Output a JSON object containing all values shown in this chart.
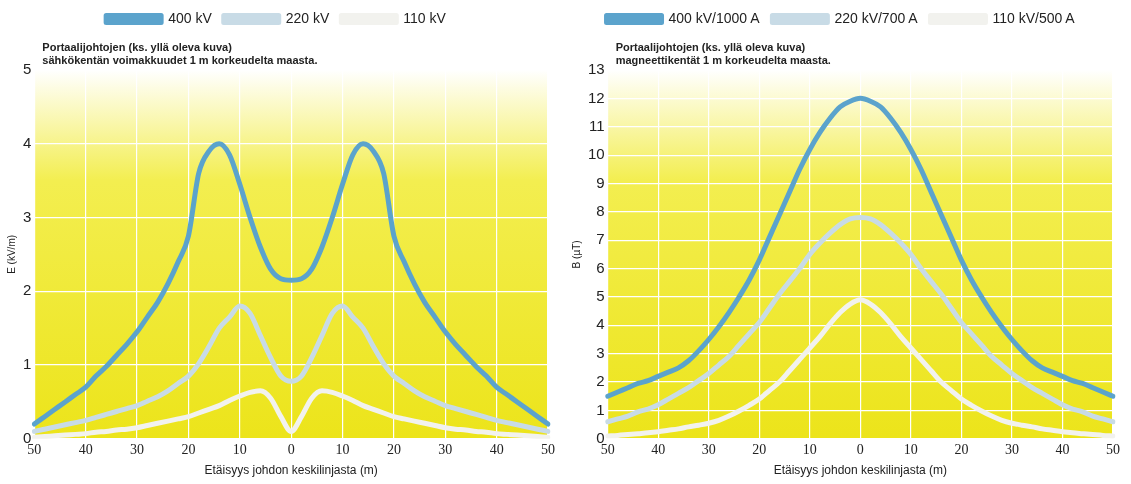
{
  "chart_data": [
    {
      "type": "line",
      "xlabel": "Etäisyys johdon keskilinjasta (m)",
      "ylabel": "E (kV/m)",
      "annotations": [
        "Portaalijohtojen (ks. yllä oleva kuva)",
        "sähkökentän voimakkuudet 1 m korkeudelta maasta."
      ],
      "categories": [
        "50",
        null,
        null,
        null,
        null,
        "40",
        null,
        null,
        null,
        null,
        "30",
        null,
        null,
        null,
        null,
        "20",
        null,
        null,
        null,
        null,
        "10",
        null,
        null,
        null,
        null,
        "0",
        null,
        null,
        null,
        null,
        "10",
        null,
        null,
        null,
        null,
        "20",
        null,
        null,
        null,
        null,
        "30",
        null,
        null,
        null,
        null,
        "40",
        null,
        null,
        null,
        null,
        "50"
      ],
      "ylim": [
        0,
        5
      ],
      "yticks": [
        0,
        1,
        2,
        3,
        4,
        5
      ],
      "grid": true,
      "legend": "top",
      "series": [
        {
          "name": "400 kV",
          "color": "#5ba3cc",
          "values": [
            0.2,
            0.3,
            0.4,
            0.5,
            0.6,
            0.7,
            0.85,
            0.98,
            1.13,
            1.28,
            1.45,
            1.65,
            1.85,
            2.1,
            2.4,
            2.75,
            3.6,
            3.9,
            4.0,
            3.85,
            3.45,
            3.0,
            2.6,
            2.3,
            2.17,
            2.15,
            2.17,
            2.3,
            2.6,
            3.0,
            3.45,
            3.85,
            4.0,
            3.9,
            3.6,
            2.75,
            2.4,
            2.1,
            1.85,
            1.65,
            1.45,
            1.28,
            1.13,
            0.98,
            0.85,
            0.7,
            0.6,
            0.5,
            0.4,
            0.3,
            0.2
          ]
        },
        {
          "name": "220 kV",
          "color": "#c8dbe6",
          "values": [
            0.1,
            0.13,
            0.16,
            0.19,
            0.22,
            0.25,
            0.29,
            0.33,
            0.37,
            0.41,
            0.45,
            0.51,
            0.57,
            0.65,
            0.75,
            0.85,
            1.02,
            1.25,
            1.5,
            1.65,
            1.8,
            1.7,
            1.4,
            1.1,
            0.85,
            0.78,
            0.85,
            1.1,
            1.4,
            1.7,
            1.8,
            1.65,
            1.5,
            1.25,
            1.02,
            0.85,
            0.75,
            0.65,
            0.57,
            0.51,
            0.45,
            0.41,
            0.37,
            0.33,
            0.29,
            0.25,
            0.22,
            0.19,
            0.16,
            0.13,
            0.1
          ]
        },
        {
          "name": "110 kV",
          "color": "#f2f2ee",
          "values": [
            0.02,
            0.03,
            0.04,
            0.05,
            0.06,
            0.07,
            0.09,
            0.1,
            0.12,
            0.13,
            0.15,
            0.18,
            0.21,
            0.24,
            0.27,
            0.3,
            0.35,
            0.4,
            0.45,
            0.52,
            0.58,
            0.63,
            0.65,
            0.55,
            0.3,
            0.1,
            0.3,
            0.55,
            0.65,
            0.63,
            0.58,
            0.52,
            0.45,
            0.4,
            0.35,
            0.3,
            0.27,
            0.24,
            0.21,
            0.18,
            0.15,
            0.13,
            0.12,
            0.1,
            0.09,
            0.07,
            0.06,
            0.05,
            0.04,
            0.03,
            0.02
          ]
        }
      ]
    },
    {
      "type": "line",
      "xlabel": "Etäisyys johdon keskilinjasta (m)",
      "ylabel": "B (µT)",
      "annotations": [
        "Portaalijohtojen (ks. yllä oleva kuva)",
        "magneettikentät 1 m korkeudelta maasta."
      ],
      "categories": [
        "50",
        null,
        null,
        null,
        null,
        "40",
        null,
        null,
        null,
        null,
        "30",
        null,
        null,
        null,
        null,
        "20",
        null,
        null,
        null,
        null,
        "10",
        null,
        null,
        null,
        null,
        "0",
        null,
        null,
        null,
        null,
        "10",
        null,
        null,
        null,
        null,
        "20",
        null,
        null,
        null,
        null,
        "30",
        null,
        null,
        null,
        null,
        "40",
        null,
        null,
        null,
        null,
        "50"
      ],
      "ylim": [
        0,
        13
      ],
      "yticks": [
        0,
        1,
        2,
        3,
        4,
        5,
        6,
        7,
        8,
        9,
        10,
        11,
        12,
        13
      ],
      "grid": true,
      "legend": "top",
      "series": [
        {
          "name": "400 kV/1000 A",
          "color": "#5ba3cc",
          "values": [
            1.5,
            1.65,
            1.8,
            1.95,
            2.05,
            2.2,
            2.35,
            2.5,
            2.75,
            3.1,
            3.5,
            3.95,
            4.45,
            5.0,
            5.6,
            6.3,
            7.1,
            7.9,
            8.7,
            9.5,
            10.2,
            10.8,
            11.3,
            11.7,
            11.9,
            12.0,
            11.9,
            11.7,
            11.3,
            10.8,
            10.2,
            9.5,
            8.7,
            7.9,
            7.1,
            6.3,
            5.6,
            5.0,
            4.45,
            3.95,
            3.5,
            3.1,
            2.75,
            2.5,
            2.35,
            2.2,
            2.05,
            1.95,
            1.8,
            1.65,
            1.5
          ]
        },
        {
          "name": "220 kV/700 A",
          "color": "#c8dbe6",
          "values": [
            0.6,
            0.7,
            0.8,
            0.95,
            1.05,
            1.2,
            1.4,
            1.6,
            1.8,
            2.05,
            2.3,
            2.6,
            2.9,
            3.3,
            3.7,
            4.1,
            4.6,
            5.1,
            5.55,
            6.0,
            6.5,
            6.9,
            7.25,
            7.55,
            7.75,
            7.8,
            7.75,
            7.55,
            7.25,
            6.9,
            6.5,
            6.0,
            5.55,
            5.1,
            4.6,
            4.1,
            3.7,
            3.3,
            2.9,
            2.6,
            2.3,
            2.05,
            1.8,
            1.6,
            1.4,
            1.2,
            1.05,
            0.95,
            0.8,
            0.7,
            0.6
          ]
        },
        {
          "name": "110 kV/500 A",
          "color": "#f2f2ee",
          "values": [
            0.1,
            0.12,
            0.15,
            0.18,
            0.21,
            0.25,
            0.3,
            0.35,
            0.42,
            0.48,
            0.55,
            0.65,
            0.8,
            0.98,
            1.18,
            1.4,
            1.7,
            2.0,
            2.4,
            2.8,
            3.2,
            3.6,
            4.05,
            4.45,
            4.75,
            4.9,
            4.75,
            4.45,
            4.05,
            3.6,
            3.2,
            2.8,
            2.4,
            2.0,
            1.7,
            1.4,
            1.18,
            0.98,
            0.8,
            0.65,
            0.55,
            0.48,
            0.42,
            0.35,
            0.3,
            0.25,
            0.21,
            0.18,
            0.15,
            0.12,
            0.1
          ]
        }
      ]
    }
  ]
}
